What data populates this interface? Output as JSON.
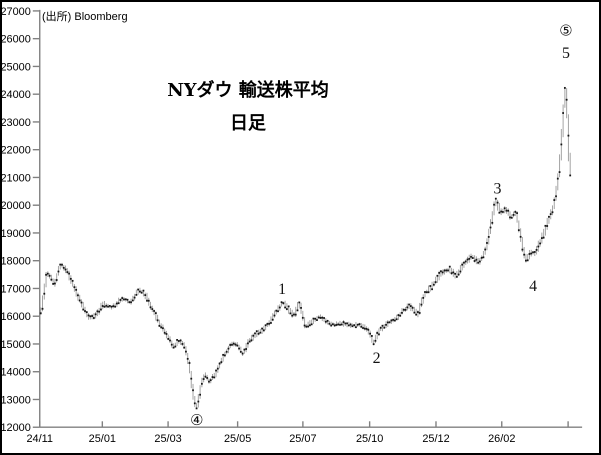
{
  "window": {
    "background": "#ffffff",
    "border_color": "#000000"
  },
  "chart_data": {
    "type": "line",
    "style": "daily high-low price bars with close dots (OHLC daily chart)",
    "title": "NYダウ 輸送株平均",
    "subtitle": "日足",
    "source": "(出所) Bloomberg",
    "xlabel": "",
    "ylabel": "",
    "grid": "off",
    "legend": "none",
    "ylim": [
      12000,
      27000
    ],
    "y_tick_step": 1000,
    "y_ticks": [
      12000,
      13000,
      14000,
      15000,
      16000,
      17000,
      18000,
      19000,
      20000,
      21000,
      22000,
      23000,
      24000,
      25000,
      26000,
      27000
    ],
    "x_ticks": [
      {
        "label": "24/11",
        "t": 0.0
      },
      {
        "label": "25/01",
        "t": 0.118
      },
      {
        "label": "25/03",
        "t": 0.242
      },
      {
        "label": "25/05",
        "t": 0.373
      },
      {
        "label": "25/07",
        "t": 0.496
      },
      {
        "label": "25/10",
        "t": 0.622
      },
      {
        "label": "25/12",
        "t": 0.747
      },
      {
        "label": "26/02",
        "t": 0.871
      },
      {
        "label": "",
        "t": 0.996
      }
    ],
    "bars_count": 300,
    "series_keypoints": [
      {
        "t": 0.0,
        "price": 16100
      },
      {
        "t": 0.006,
        "price": 16700
      },
      {
        "t": 0.011,
        "price": 17600
      },
      {
        "t": 0.019,
        "price": 17400
      },
      {
        "t": 0.026,
        "price": 17100
      },
      {
        "t": 0.037,
        "price": 17850
      },
      {
        "t": 0.049,
        "price": 17700
      },
      {
        "t": 0.064,
        "price": 17000
      },
      {
        "t": 0.079,
        "price": 16400
      },
      {
        "t": 0.09,
        "price": 15950
      },
      {
        "t": 0.103,
        "price": 16000
      },
      {
        "t": 0.118,
        "price": 16450
      },
      {
        "t": 0.135,
        "price": 16300
      },
      {
        "t": 0.154,
        "price": 16650
      },
      {
        "t": 0.169,
        "price": 16500
      },
      {
        "t": 0.185,
        "price": 16950
      },
      {
        "t": 0.197,
        "price": 16800
      },
      {
        "t": 0.21,
        "price": 16300
      },
      {
        "t": 0.225,
        "price": 15700
      },
      {
        "t": 0.238,
        "price": 15350
      },
      {
        "t": 0.251,
        "price": 14900
      },
      {
        "t": 0.262,
        "price": 15150
      },
      {
        "t": 0.273,
        "price": 14900
      },
      {
        "t": 0.281,
        "price": 14200
      },
      {
        "t": 0.29,
        "price": 12900
      },
      {
        "t": 0.296,
        "price": 12650
      },
      {
        "t": 0.303,
        "price": 13600
      },
      {
        "t": 0.311,
        "price": 13900
      },
      {
        "t": 0.318,
        "price": 13650
      },
      {
        "t": 0.33,
        "price": 13900
      },
      {
        "t": 0.344,
        "price": 14500
      },
      {
        "t": 0.36,
        "price": 15000
      },
      {
        "t": 0.373,
        "price": 14950
      },
      {
        "t": 0.382,
        "price": 14600
      },
      {
        "t": 0.393,
        "price": 15100
      },
      {
        "t": 0.406,
        "price": 15350
      },
      {
        "t": 0.419,
        "price": 15500
      },
      {
        "t": 0.434,
        "price": 15800
      },
      {
        "t": 0.446,
        "price": 16200
      },
      {
        "t": 0.457,
        "price": 16500
      },
      {
        "t": 0.468,
        "price": 16250
      },
      {
        "t": 0.478,
        "price": 16000
      },
      {
        "t": 0.489,
        "price": 16500
      },
      {
        "t": 0.5,
        "price": 15600
      },
      {
        "t": 0.513,
        "price": 15800
      },
      {
        "t": 0.528,
        "price": 16000
      },
      {
        "t": 0.543,
        "price": 15750
      },
      {
        "t": 0.558,
        "price": 15700
      },
      {
        "t": 0.573,
        "price": 15750
      },
      {
        "t": 0.588,
        "price": 15650
      },
      {
        "t": 0.603,
        "price": 15700
      },
      {
        "t": 0.616,
        "price": 15550
      },
      {
        "t": 0.629,
        "price": 15050
      },
      {
        "t": 0.64,
        "price": 15500
      },
      {
        "t": 0.655,
        "price": 15750
      },
      {
        "t": 0.67,
        "price": 15900
      },
      {
        "t": 0.685,
        "price": 16200
      },
      {
        "t": 0.697,
        "price": 16380
      },
      {
        "t": 0.712,
        "price": 16050
      },
      {
        "t": 0.725,
        "price": 16800
      },
      {
        "t": 0.74,
        "price": 17100
      },
      {
        "t": 0.757,
        "price": 17600
      },
      {
        "t": 0.772,
        "price": 17700
      },
      {
        "t": 0.785,
        "price": 17420
      },
      {
        "t": 0.8,
        "price": 17950
      },
      {
        "t": 0.815,
        "price": 18150
      },
      {
        "t": 0.828,
        "price": 17950
      },
      {
        "t": 0.841,
        "price": 18350
      },
      {
        "t": 0.85,
        "price": 19300
      },
      {
        "t": 0.86,
        "price": 20200
      },
      {
        "t": 0.869,
        "price": 19700
      },
      {
        "t": 0.879,
        "price": 19900
      },
      {
        "t": 0.888,
        "price": 19500
      },
      {
        "t": 0.897,
        "price": 19800
      },
      {
        "t": 0.907,
        "price": 18900
      },
      {
        "t": 0.916,
        "price": 17950
      },
      {
        "t": 0.925,
        "price": 18300
      },
      {
        "t": 0.934,
        "price": 18250
      },
      {
        "t": 0.944,
        "price": 18700
      },
      {
        "t": 0.953,
        "price": 19100
      },
      {
        "t": 0.96,
        "price": 19500
      },
      {
        "t": 0.968,
        "price": 19900
      },
      {
        "t": 0.974,
        "price": 20400
      },
      {
        "t": 0.979,
        "price": 21200
      },
      {
        "t": 0.983,
        "price": 22000
      },
      {
        "t": 0.987,
        "price": 23200
      },
      {
        "t": 0.991,
        "price": 24400
      },
      {
        "t": 0.992,
        "price": 24900
      },
      {
        "t": 0.996,
        "price": 22500
      },
      {
        "t": 1.0,
        "price": 21200
      }
    ],
    "annotations": [
      {
        "id": "4-circled",
        "text": "④",
        "circled": true,
        "t": 0.296,
        "price": 12250
      },
      {
        "id": "1",
        "text": "1",
        "circled": false,
        "t": 0.457,
        "price": 16980
      },
      {
        "id": "2",
        "text": "2",
        "circled": false,
        "t": 0.635,
        "price": 14500
      },
      {
        "id": "3",
        "text": "3",
        "circled": false,
        "t": 0.863,
        "price": 20600
      },
      {
        "id": "4",
        "text": "4",
        "circled": false,
        "t": 0.93,
        "price": 17080
      },
      {
        "id": "5",
        "text": "5",
        "circled": false,
        "t": 0.992,
        "price": 25480
      },
      {
        "id": "5-circled",
        "text": "⑤",
        "circled": true,
        "t": 0.992,
        "price": 26300
      }
    ],
    "colors": {
      "bar": "#a3a3a3",
      "close_dot": "#161616",
      "axis": "#808080",
      "text": "#000000"
    }
  }
}
